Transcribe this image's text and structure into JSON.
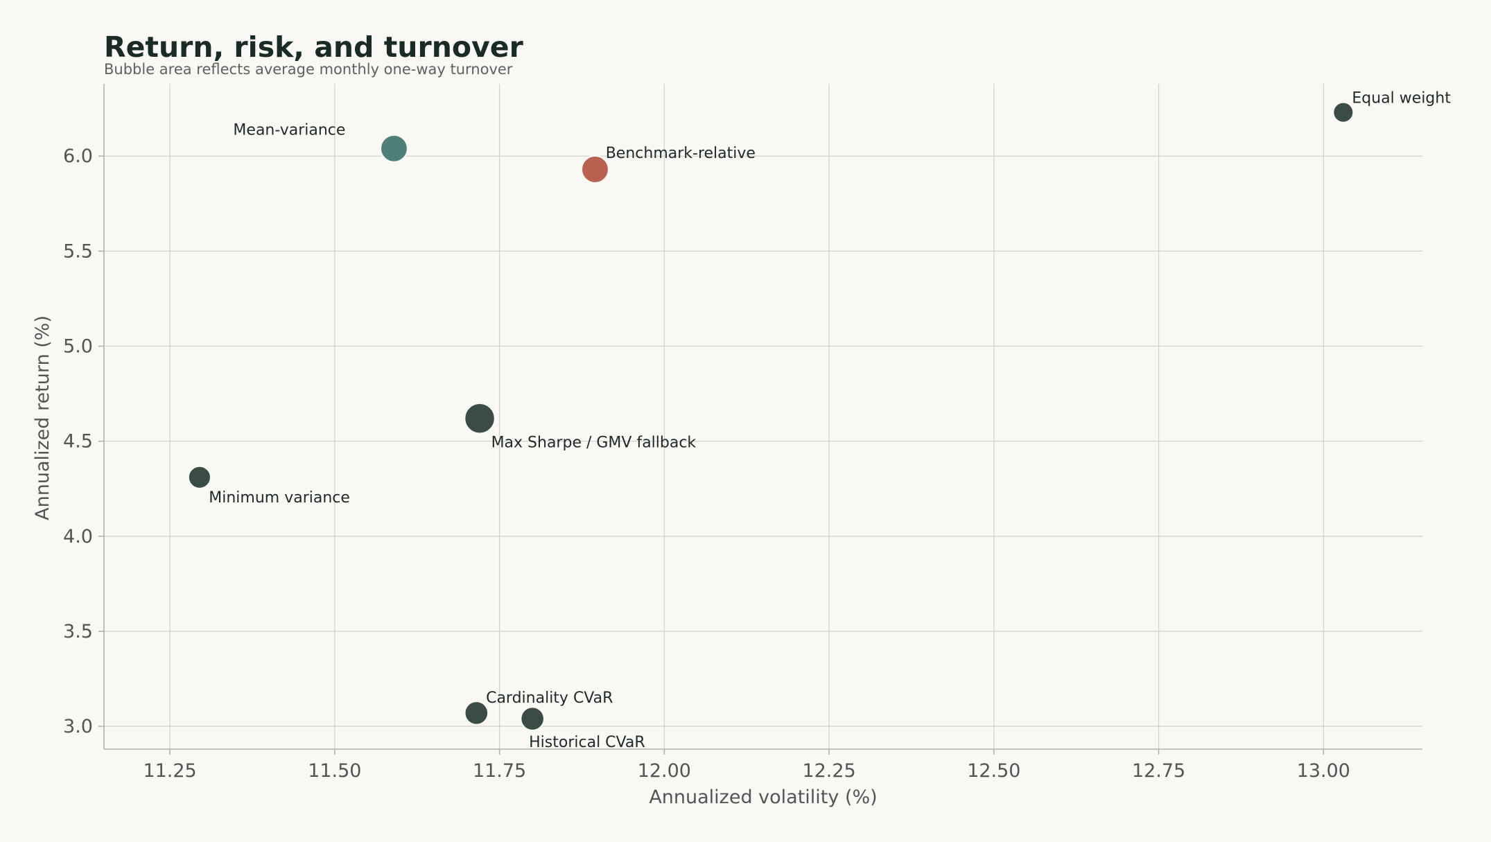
{
  "chart_data": {
    "type": "scatter",
    "title": "Return, risk, and turnover",
    "subtitle": "Bubble area reflects average monthly one-way turnover",
    "xlabel": "Annualized volatility (%)",
    "ylabel": "Annualized return (%)",
    "xlim": [
      11.15,
      13.15
    ],
    "ylim": [
      2.88,
      6.38
    ],
    "xticks": [
      "11.25",
      "11.50",
      "11.75",
      "12.00",
      "12.25",
      "12.50",
      "12.75",
      "13.00"
    ],
    "yticks": [
      "3.0",
      "3.5",
      "4.0",
      "4.5",
      "5.0",
      "5.5",
      "6.0"
    ],
    "grid": true,
    "points": [
      {
        "label": "Equal weight",
        "x": 13.03,
        "y": 6.23,
        "size": 0.45,
        "color": "#3b4b46",
        "label_pos": "above-right"
      },
      {
        "label": "Mean-variance",
        "x": 11.59,
        "y": 6.04,
        "size": 0.8,
        "color": "#4f7f78",
        "label_pos": "above-left"
      },
      {
        "label": "Benchmark-relative",
        "x": 11.895,
        "y": 5.93,
        "size": 0.8,
        "color": "#b96150",
        "label_pos": "above-right"
      },
      {
        "label": "Max Sharpe / GMV fallback",
        "x": 11.72,
        "y": 4.62,
        "size": 1.0,
        "color": "#3b4b46",
        "label_pos": "below-right"
      },
      {
        "label": "Minimum variance",
        "x": 11.295,
        "y": 4.31,
        "size": 0.55,
        "color": "#3b4b46",
        "label_pos": "below-right"
      },
      {
        "label": "Cardinality CVaR",
        "x": 11.715,
        "y": 3.07,
        "size": 0.6,
        "color": "#3b4b46",
        "label_pos": "above-right"
      },
      {
        "label": "Historical CVaR",
        "x": 11.8,
        "y": 3.04,
        "size": 0.6,
        "color": "#3b4b46",
        "label_pos": "below-left"
      }
    ]
  }
}
